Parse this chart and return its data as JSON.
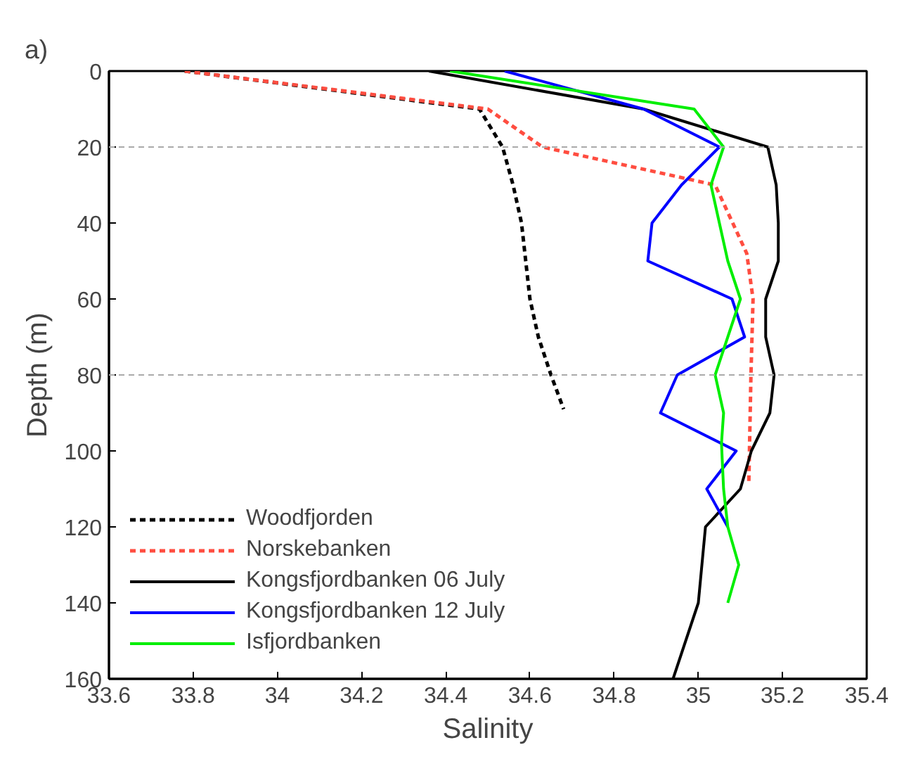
{
  "chart_data": {
    "type": "line",
    "xlabel": "Salinity",
    "ylabel": "Depth (m)",
    "annotations": [
      "a)"
    ],
    "xlim": [
      33.6,
      35.4
    ],
    "xticks": [
      33.6,
      33.8,
      34,
      34.2,
      34.4,
      34.6,
      34.8,
      35,
      35.2,
      35.4
    ],
    "ylim": [
      160,
      0
    ],
    "yticks": [
      0,
      20,
      40,
      60,
      80,
      100,
      120,
      140,
      160
    ],
    "ref_lines": [
      {
        "axis": "y",
        "value": 20,
        "color": "#aaaaaa",
        "line_style": "dashed"
      },
      {
        "axis": "y",
        "value": 80,
        "color": "#aaaaaa",
        "line_style": "dashed"
      }
    ],
    "legend": "bottom left",
    "grid": false,
    "series": [
      {
        "name": "Woodfjorden",
        "color": "#000000",
        "line_style": "dotted",
        "x": [
          33.78,
          34.48,
          34.535,
          34.56,
          34.58,
          34.59,
          34.6,
          34.62,
          34.65,
          34.68
        ],
        "values": [
          0,
          10,
          20,
          30,
          40,
          50,
          60,
          70,
          80,
          89
        ]
      },
      {
        "name": "Norskebanken",
        "color": "#ff4d40",
        "line_style": "dotted",
        "x": [
          33.78,
          34.5,
          34.63,
          35.04,
          35.115,
          35.13,
          35.125,
          35.12
        ],
        "values": [
          0,
          10,
          20,
          30,
          48,
          60,
          80,
          108
        ]
      },
      {
        "name": "Kongsfjordbanken 06 July",
        "color": "#000000",
        "line_style": "solid",
        "x": [
          34.36,
          34.87,
          35.165,
          35.185,
          35.19,
          35.19,
          35.16,
          35.16,
          35.18,
          35.17,
          35.126,
          35.1,
          35.017,
          35.0,
          34.94
        ],
        "values": [
          0,
          10,
          20,
          30,
          40,
          50,
          60,
          70,
          80,
          90,
          100,
          110,
          120,
          140,
          160
        ]
      },
      {
        "name": "Kongsfjordbanken 12 July",
        "color": "#0000ff",
        "line_style": "solid",
        "x": [
          34.54,
          34.87,
          35.05,
          34.96,
          34.89,
          34.88,
          35.08,
          35.11,
          34.95,
          34.91,
          35.09,
          35.02,
          35.07
        ],
        "values": [
          0,
          10,
          20,
          30,
          40,
          50,
          60,
          70,
          80,
          90,
          100,
          110,
          120
        ]
      },
      {
        "name": "Isfjordbanken",
        "color": "#00ee00",
        "line_style": "solid",
        "x": [
          34.41,
          34.99,
          35.06,
          35.03,
          35.05,
          35.07,
          35.1,
          35.07,
          35.04,
          35.06,
          35.055,
          35.06,
          35.07,
          35.096,
          35.07
        ],
        "values": [
          0,
          10,
          20,
          30,
          40,
          50,
          60,
          70,
          80,
          90,
          98,
          110,
          120,
          130,
          140
        ]
      }
    ]
  }
}
